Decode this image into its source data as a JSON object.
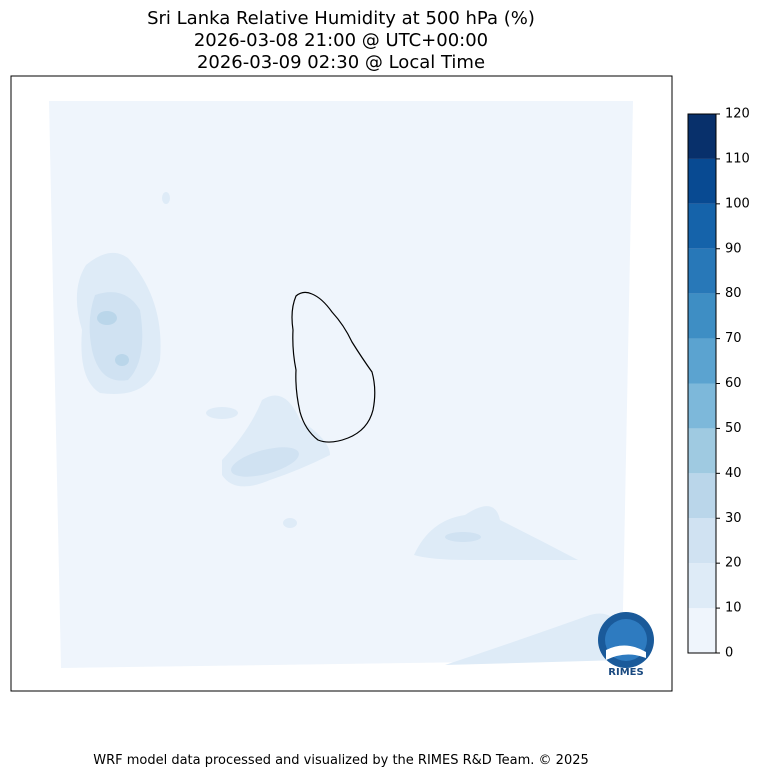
{
  "title": [
    "Sri Lanka Relative Humidity at 500 hPa (%)",
    "2026-03-08 21:00 @ UTC+00:00",
    "2026-03-09 02:30 @ Local Time"
  ],
  "colorbar": {
    "ticks": [
      0,
      10,
      20,
      30,
      40,
      50,
      60,
      70,
      80,
      90,
      100,
      110,
      120
    ],
    "colors": [
      "#eff5fc",
      "#deebf7",
      "#d0e2f2",
      "#bad6ea",
      "#9fcae1",
      "#7db8da",
      "#5ba3d0",
      "#3e8ec4",
      "#2878b8",
      "#1563aa",
      "#084a92",
      "#08306b"
    ]
  },
  "logo": {
    "text": "RIMES"
  },
  "footer": "WRF model data processed and visualized by the RIMES R&D Team. © 2025"
}
